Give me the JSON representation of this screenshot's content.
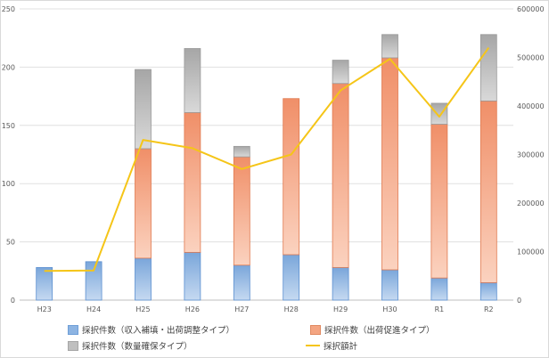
{
  "chart_data": {
    "type": "bar",
    "stacked": true,
    "categories": [
      "H23",
      "H24",
      "H25",
      "H26",
      "H27",
      "H28",
      "H29",
      "H30",
      "R1",
      "R2"
    ],
    "series": [
      {
        "name": "採択件数（収入補填・出荷調整タイプ）",
        "axis": "left",
        "color": "#8db4e2",
        "values": [
          28,
          33,
          36,
          41,
          30,
          39,
          28,
          26,
          19,
          15
        ]
      },
      {
        "name": "採択件数（出荷促進タイプ）",
        "axis": "left",
        "color": "#f4a582",
        "values": [
          0,
          0,
          94,
          120,
          93,
          134,
          158,
          182,
          132,
          156
        ]
      },
      {
        "name": "採択件数（数量確保タイプ）",
        "axis": "left",
        "color": "#bfbfbf",
        "values": [
          0,
          0,
          68,
          55,
          9,
          0,
          20,
          20,
          18,
          57
        ]
      },
      {
        "name": "採択額計",
        "type": "line",
        "axis": "right",
        "color": "#f5c518",
        "values": [
          60000,
          61000,
          330000,
          313000,
          270000,
          300000,
          432000,
          497000,
          378000,
          520000
        ]
      }
    ],
    "yleft": {
      "min": 0,
      "max": 250,
      "ticks": [
        0,
        50,
        100,
        150,
        200,
        250
      ]
    },
    "yright": {
      "min": 0,
      "max": 600000,
      "ticks": [
        0,
        100000,
        200000,
        300000,
        400000,
        500000,
        600000
      ]
    },
    "grid": true,
    "legend_position": "bottom"
  }
}
